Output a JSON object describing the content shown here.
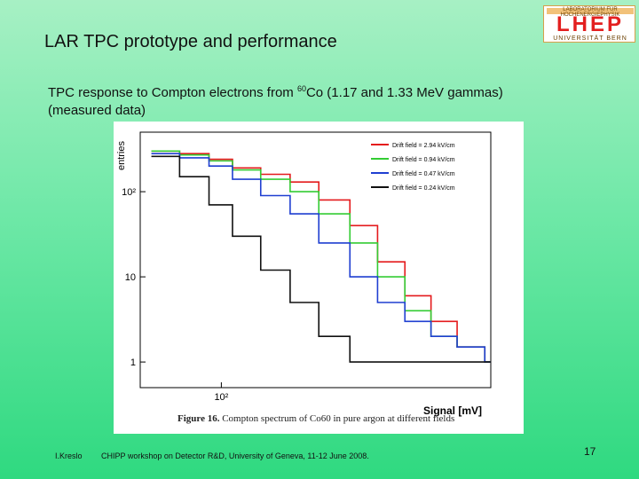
{
  "slide": {
    "title": "LAR TPC prototype and performance",
    "subtitle_line1_a": "TPC response to Compton electrons from ",
    "subtitle_sup": "60",
    "subtitle_line1_b": "Co (1.17 and 1.33 MeV gammas)",
    "subtitle_line2": "(measured data)",
    "caption_label": "Figure 16.",
    "caption_text": " Compton spectrum of Co60 in pure argon at different fields",
    "footer_author": "I.Kreslo",
    "footer_event": "CHIPP workshop on Detector R&D, University of Geneva, 11-12 June 2008.",
    "page_number": "17"
  },
  "logo": {
    "top_text": "LABORATORIUM FÜR HOCHENERGIEPHYSIK",
    "main_text": "LHEP",
    "bottom_text": "UNIVERSITÄT BERN",
    "colors": {
      "main": "#e31f1f",
      "border": "#d6a04a"
    }
  },
  "chart_data": {
    "type": "line",
    "xlabel": "Signal [mV]",
    "ylabel": "entries",
    "xscale": "log",
    "yscale": "log",
    "xlim": [
      50,
      1000
    ],
    "ylim": [
      0.5,
      500
    ],
    "x_ticks": [
      {
        "value": 100,
        "label": "10²"
      }
    ],
    "y_ticks": [
      {
        "value": 1,
        "label": "1"
      },
      {
        "value": 10,
        "label": "10"
      },
      {
        "value": 100,
        "label": "10²"
      }
    ],
    "legend_position": "top-right",
    "grid": false,
    "x": [
      55,
      70,
      90,
      110,
      140,
      180,
      230,
      300,
      380,
      480,
      600,
      750,
      950
    ],
    "series": [
      {
        "name": "Drift field = 2.94 kV/cm",
        "color": "#e41a1c",
        "values": [
          300,
          280,
          240,
          190,
          160,
          130,
          80,
          40,
          15,
          6,
          3,
          1.5,
          1
        ]
      },
      {
        "name": "Drift field = 0.94 kV/cm",
        "color": "#33cc33",
        "values": [
          300,
          270,
          230,
          180,
          140,
          100,
          55,
          25,
          10,
          4,
          2,
          1.5,
          1
        ]
      },
      {
        "name": "Drift field = 0.47 kV/cm",
        "color": "#1f3fd1",
        "values": [
          280,
          250,
          200,
          140,
          90,
          55,
          25,
          10,
          5,
          3,
          2,
          1.5,
          1
        ]
      },
      {
        "name": "Drift field = 0.24 kV/cm",
        "color": "#111111",
        "values": [
          260,
          150,
          70,
          30,
          12,
          5,
          2,
          1,
          1,
          1,
          1,
          1,
          1
        ]
      }
    ]
  }
}
